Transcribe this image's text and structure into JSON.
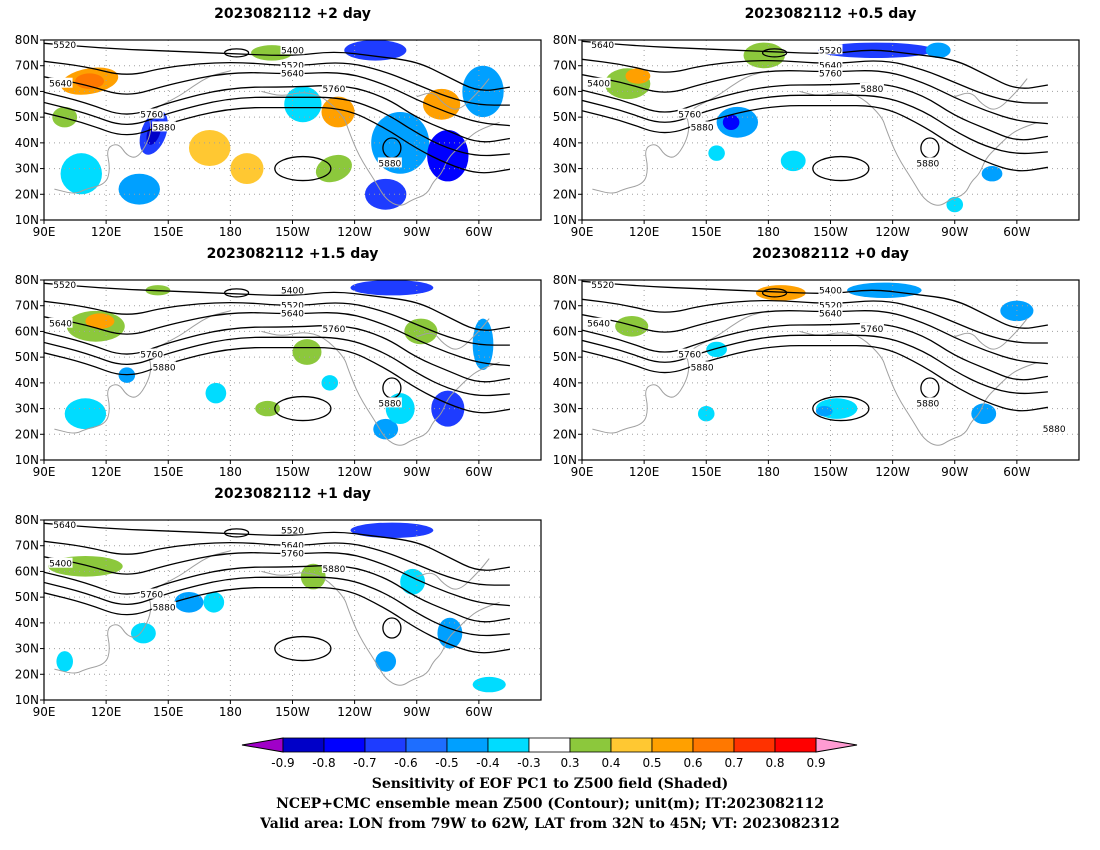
{
  "panels": [
    {
      "title": "2023082112 +2 day",
      "contour_labels": [
        "5520",
        "5640",
        "5400",
        "5520",
        "5640",
        "5760",
        "5760",
        "5880",
        "5880"
      ]
    },
    {
      "title": "2023082112 +0.5 day",
      "contour_labels": [
        "5640",
        "5400",
        "5520",
        "5640",
        "5760",
        "5760",
        "5880",
        "5880",
        "5880"
      ]
    },
    {
      "title": "2023082112 +1.5 day",
      "contour_labels": [
        "5520",
        "5640",
        "5400",
        "5520",
        "5640",
        "5760",
        "5760",
        "5880",
        "5880"
      ]
    },
    {
      "title": "2023082112 +0 day",
      "contour_labels": [
        "5520",
        "5640",
        "5400",
        "5520",
        "5640",
        "5760",
        "5760",
        "5880",
        "5880",
        "5880"
      ]
    },
    {
      "title": "2023082112 +1 day",
      "contour_labels": [
        "5640",
        "5400",
        "5520",
        "5640",
        "5760",
        "5760",
        "5880",
        "5880"
      ]
    }
  ],
  "axes": {
    "lat_labels": [
      "80N",
      "70N",
      "60N",
      "50N",
      "40N",
      "30N",
      "20N",
      "10N"
    ],
    "lon_labels": [
      "90E",
      "120E",
      "150E",
      "180",
      "150W",
      "120W",
      "90W",
      "60W"
    ]
  },
  "colorbar": {
    "labels": [
      "-0.9",
      "-0.8",
      "-0.7",
      "-0.6",
      "-0.5",
      "-0.4",
      "-0.3",
      "0.3",
      "0.4",
      "0.5",
      "0.6",
      "0.7",
      "0.8",
      "0.9"
    ],
    "colors": [
      "#a000c8",
      "#0000c8",
      "#0000ff",
      "#1e3cff",
      "#1e6eff",
      "#00a0ff",
      "#00dcff",
      "#ffffff",
      "#8cc83c",
      "#ffc832",
      "#ffa000",
      "#ff7800",
      "#ff3200",
      "#ff0000",
      "#ff9bd2"
    ]
  },
  "caption": {
    "line1": "Sensitivity of EOF PC1 to Z500 field (Shaded)",
    "line2": "NCEP+CMC ensemble mean Z500 (Contour); unit(m); IT:2023082112",
    "line3": "Valid area: LON from 79W to 62W, LAT from 32N to 45N; VT: 2023082312"
  },
  "colors": {
    "contour": "#000000",
    "coast": "#a0a0a0",
    "grid": "#a0a0a0"
  }
}
